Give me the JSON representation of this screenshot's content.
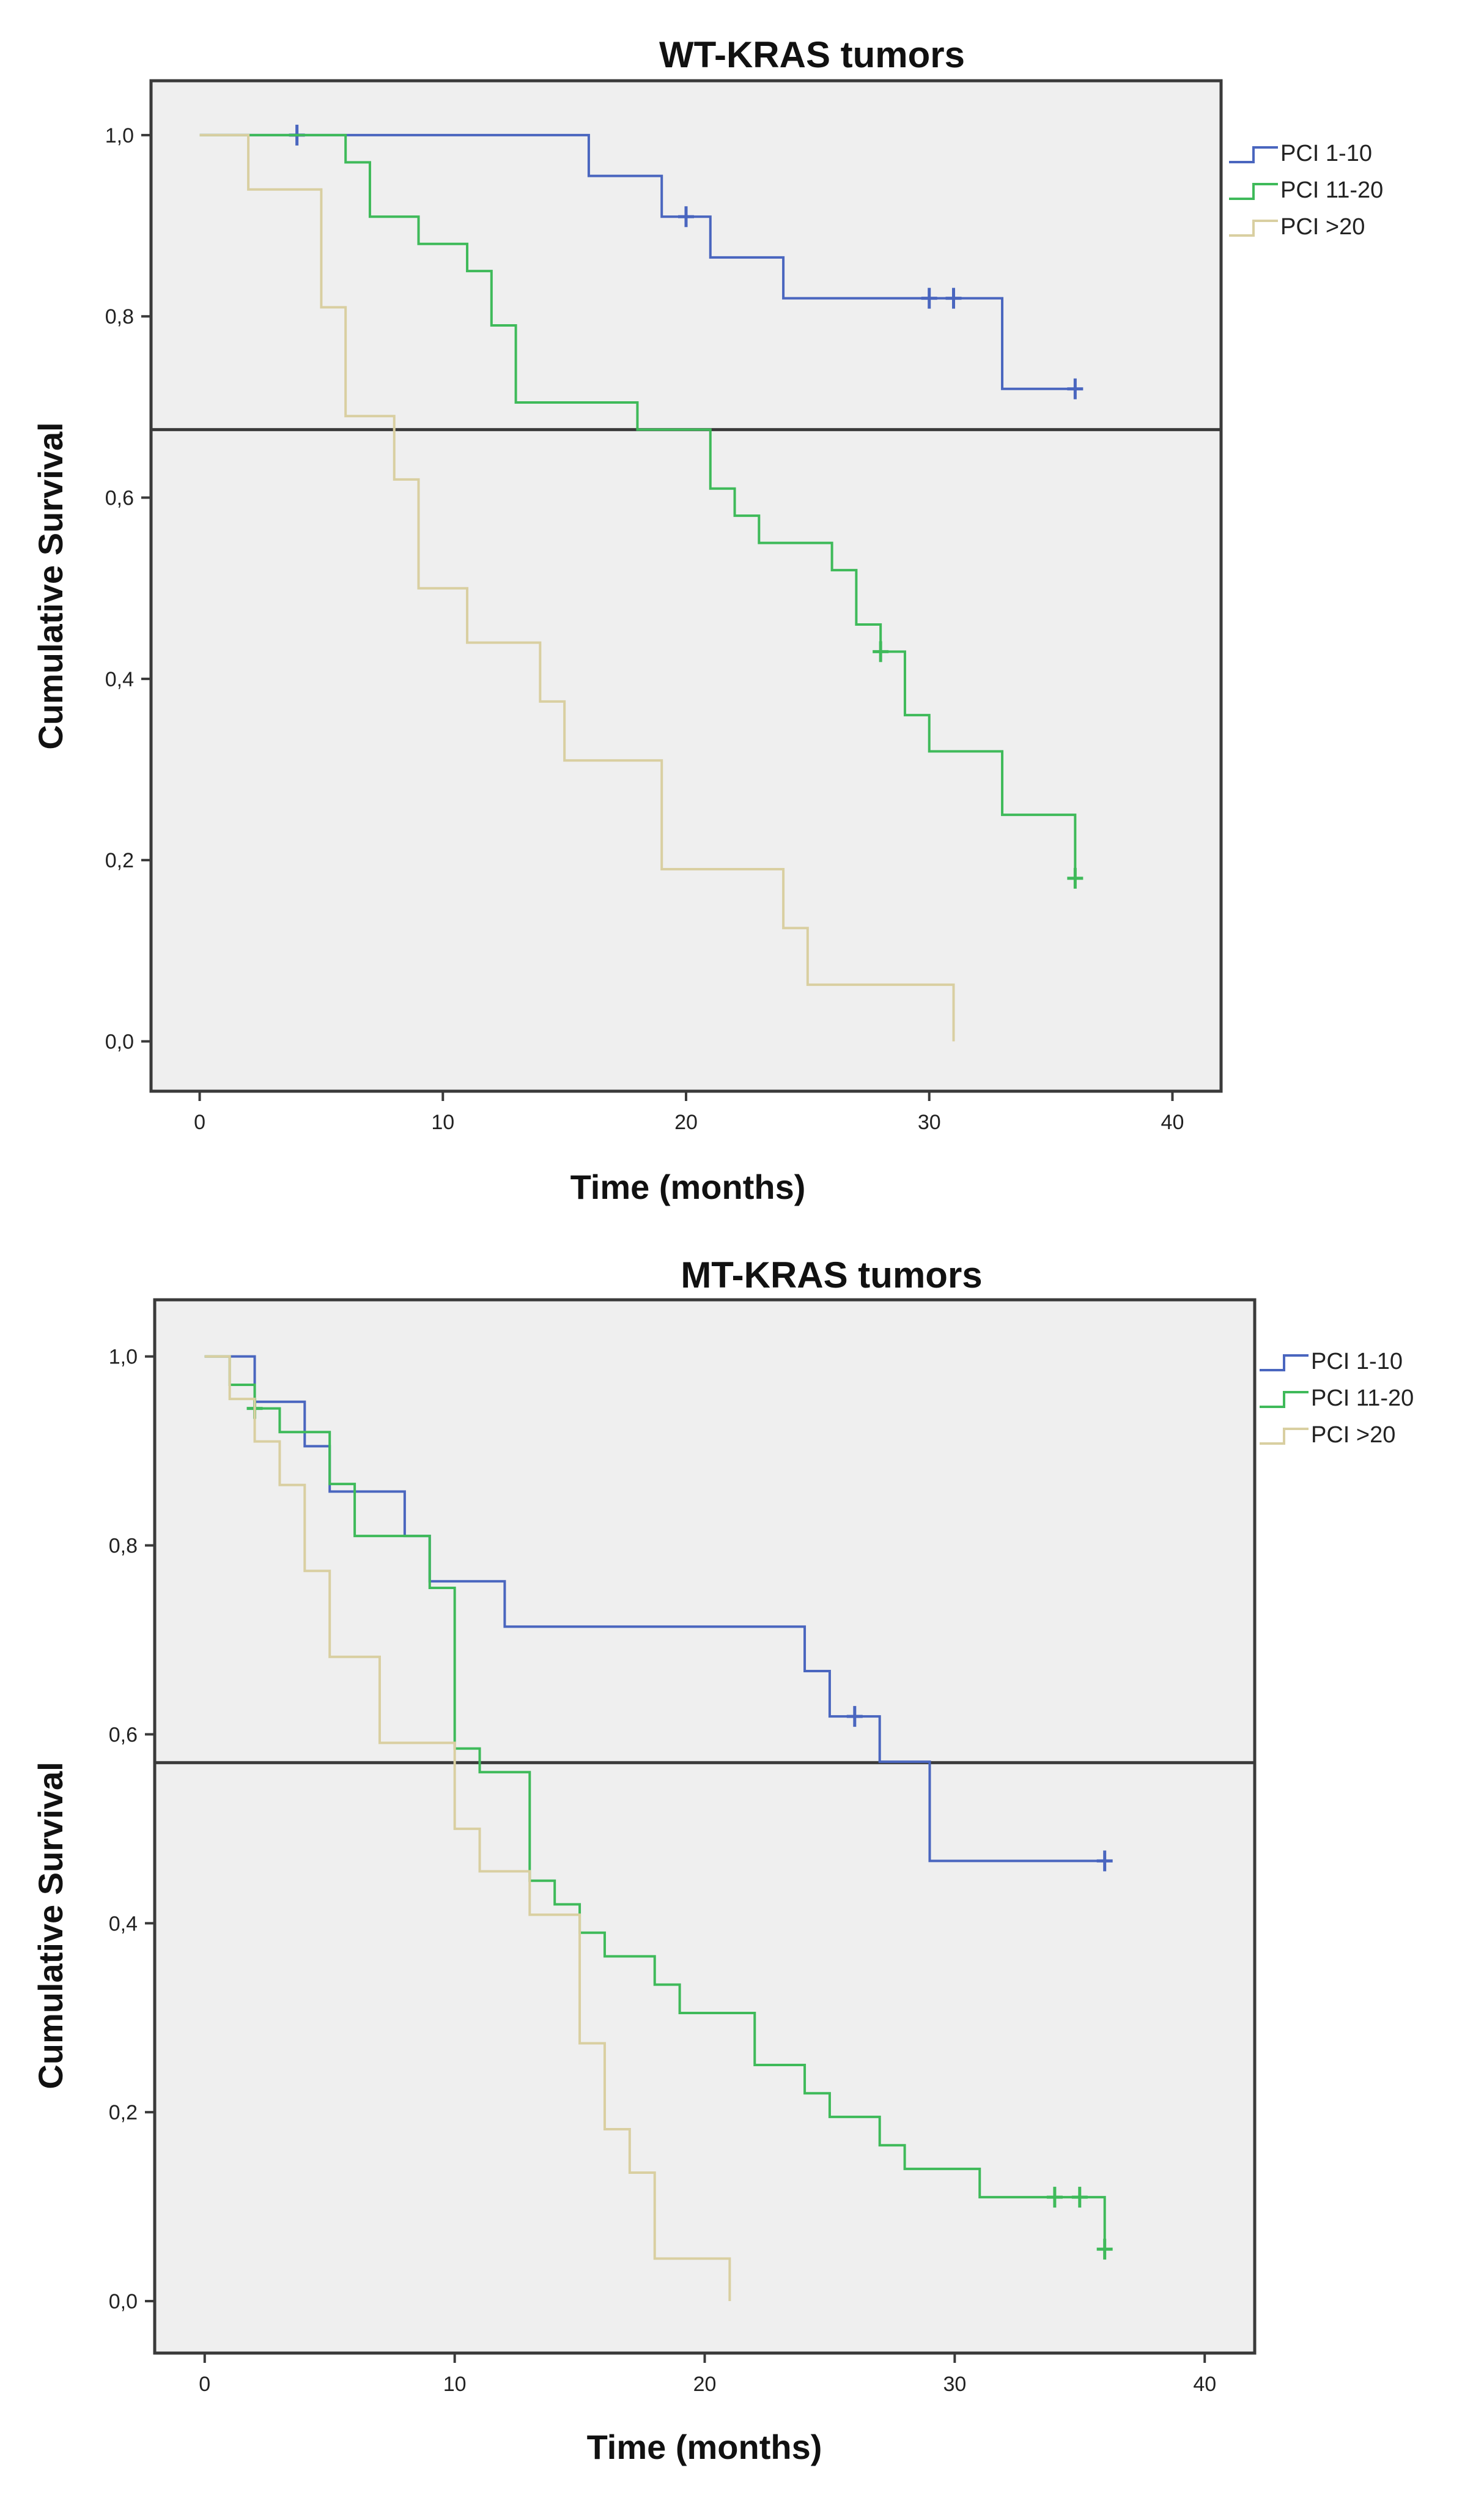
{
  "chart_data": [
    {
      "type": "line",
      "subtype": "kaplan-meier",
      "title": "WT-KRAS tumors",
      "xlabel": "Time (months)",
      "ylabel": "Cumulative Survival",
      "xlim": [
        -2,
        42
      ],
      "ylim": [
        -0.055,
        1.06
      ],
      "xticks": [
        0,
        10,
        20,
        30,
        40
      ],
      "xtick_labels": [
        "0",
        "10",
        "20",
        "30",
        "40"
      ],
      "yticks": [
        0,
        0.2,
        0.4,
        0.6,
        0.8,
        1.0
      ],
      "ytick_labels": [
        "0,0",
        "0,2",
        "0,4",
        "0,6",
        "0,8",
        "1,0"
      ],
      "reference_line_y": 0.675,
      "legend_position": "top-right",
      "series": [
        {
          "name": "PCI 1-10",
          "color": "#4a66bf",
          "steps": [
            [
              0,
              1.0
            ],
            [
              16,
              0.955
            ],
            [
              19,
              0.91
            ],
            [
              21,
              0.865
            ],
            [
              24,
              0.82
            ],
            [
              33,
              0.72
            ],
            [
              36,
              0.72
            ]
          ],
          "censored": [
            [
              4,
              1.0
            ],
            [
              20,
              0.91
            ],
            [
              30,
              0.82
            ],
            [
              31,
              0.82
            ],
            [
              36,
              0.72
            ]
          ]
        },
        {
          "name": "PCI 11-20",
          "color": "#3fba5a",
          "steps": [
            [
              0,
              1.0
            ],
            [
              6,
              0.97
            ],
            [
              7,
              0.91
            ],
            [
              9,
              0.88
            ],
            [
              11,
              0.85
            ],
            [
              12,
              0.79
            ],
            [
              13,
              0.705
            ],
            [
              18,
              0.675
            ],
            [
              21,
              0.61
            ],
            [
              22,
              0.58
            ],
            [
              23,
              0.55
            ],
            [
              26,
              0.52
            ],
            [
              27,
              0.46
            ],
            [
              28,
              0.43
            ],
            [
              29,
              0.36
            ],
            [
              30,
              0.32
            ],
            [
              33,
              0.25
            ],
            [
              36,
              0.18
            ]
          ],
          "censored": [
            [
              28,
              0.43
            ],
            [
              36,
              0.18
            ]
          ]
        },
        {
          "name": "PCI >20",
          "color": "#d9cfa1",
          "steps": [
            [
              0,
              1.0
            ],
            [
              2,
              0.94
            ],
            [
              5,
              0.81
            ],
            [
              6,
              0.69
            ],
            [
              8,
              0.62
            ],
            [
              9,
              0.5
            ],
            [
              11,
              0.44
            ],
            [
              14,
              0.375
            ],
            [
              15,
              0.31
            ],
            [
              19,
              0.19
            ],
            [
              24,
              0.125
            ],
            [
              25,
              0.0625
            ],
            [
              31,
              0.0
            ]
          ],
          "censored": []
        }
      ]
    },
    {
      "type": "line",
      "subtype": "kaplan-meier",
      "title": "MT-KRAS tumors",
      "xlabel": "Time (months)",
      "ylabel": "Cumulative Survival",
      "xlim": [
        -2,
        42
      ],
      "ylim": [
        -0.055,
        1.06
      ],
      "xticks": [
        0,
        10,
        20,
        30,
        40
      ],
      "xtick_labels": [
        "0",
        "10",
        "20",
        "30",
        "40"
      ],
      "yticks": [
        0,
        0.2,
        0.4,
        0.6,
        0.8,
        1.0
      ],
      "ytick_labels": [
        "0,0",
        "0,2",
        "0,4",
        "0,6",
        "0,8",
        "1,0"
      ],
      "reference_line_y": 0.57,
      "legend_position": "top-right",
      "series": [
        {
          "name": "PCI 1-10",
          "color": "#4a66bf",
          "steps": [
            [
              0,
              1.0
            ],
            [
              2,
              0.952
            ],
            [
              4,
              0.905
            ],
            [
              5,
              0.857
            ],
            [
              8,
              0.81
            ],
            [
              9,
              0.762
            ],
            [
              12,
              0.714
            ],
            [
              24,
              0.667
            ],
            [
              25,
              0.619
            ],
            [
              27,
              0.571
            ],
            [
              29,
              0.466
            ],
            [
              36,
              0.466
            ]
          ],
          "censored": [
            [
              26,
              0.619
            ],
            [
              36,
              0.466
            ]
          ]
        },
        {
          "name": "PCI 11-20",
          "color": "#3fba5a",
          "steps": [
            [
              0,
              1.0
            ],
            [
              1,
              0.97
            ],
            [
              2,
              0.945
            ],
            [
              3,
              0.92
            ],
            [
              5,
              0.865
            ],
            [
              6,
              0.81
            ],
            [
              9,
              0.755
            ],
            [
              10,
              0.585
            ],
            [
              11,
              0.56
            ],
            [
              13,
              0.445
            ],
            [
              14,
              0.42
            ],
            [
              15,
              0.39
            ],
            [
              16,
              0.365
            ],
            [
              18,
              0.335
            ],
            [
              19,
              0.305
            ],
            [
              22,
              0.25
            ],
            [
              24,
              0.22
            ],
            [
              25,
              0.195
            ],
            [
              27,
              0.165
            ],
            [
              28,
              0.14
            ],
            [
              31,
              0.11
            ],
            [
              36,
              0.055
            ]
          ],
          "censored": [
            [
              2,
              0.945
            ],
            [
              34,
              0.11
            ],
            [
              35,
              0.11
            ],
            [
              36,
              0.055
            ]
          ]
        },
        {
          "name": "PCI >20",
          "color": "#d9cfa1",
          "steps": [
            [
              0,
              1.0
            ],
            [
              1,
              0.955
            ],
            [
              2,
              0.91
            ],
            [
              3,
              0.864
            ],
            [
              4,
              0.773
            ],
            [
              5,
              0.682
            ],
            [
              7,
              0.591
            ],
            [
              10,
              0.5
            ],
            [
              11,
              0.455
            ],
            [
              13,
              0.409
            ],
            [
              15,
              0.273
            ],
            [
              16,
              0.182
            ],
            [
              17,
              0.136
            ],
            [
              18,
              0.045
            ],
            [
              21,
              0.0
            ]
          ],
          "censored": []
        }
      ]
    }
  ]
}
